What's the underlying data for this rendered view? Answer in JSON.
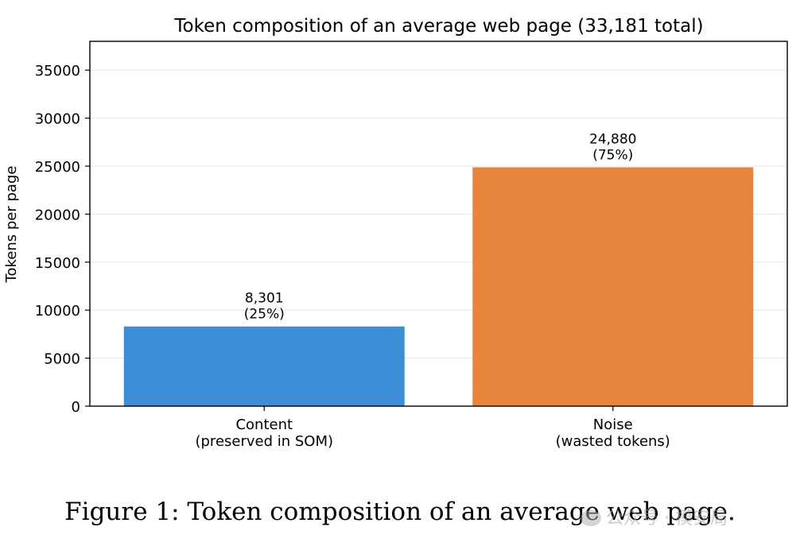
{
  "chart_data": {
    "type": "bar",
    "title": "Token composition of an average web page (33,181 total)",
    "ylabel": "Tokens per page",
    "xlabel": "",
    "ylim": [
      0,
      38000
    ],
    "yticks": [
      0,
      5000,
      10000,
      15000,
      20000,
      25000,
      30000,
      35000
    ],
    "ytick_labels": [
      "0",
      "5000",
      "10000",
      "15000",
      "20000",
      "25000",
      "30000",
      "35000"
    ],
    "grid": "horizontal",
    "categories": [
      [
        "Content",
        "(preserved in SOM)"
      ],
      [
        "Noise",
        "(wasted tokens)"
      ]
    ],
    "values": [
      8301,
      24880
    ],
    "value_labels": [
      [
        "8,301",
        "(25%)"
      ],
      [
        "24,880",
        "(75%)"
      ]
    ],
    "colors": [
      "#3d8ed6",
      "#e8853c"
    ]
  },
  "caption": "Figure 1: Token composition of an average web page.",
  "watermark": "公众号 · 模安局"
}
